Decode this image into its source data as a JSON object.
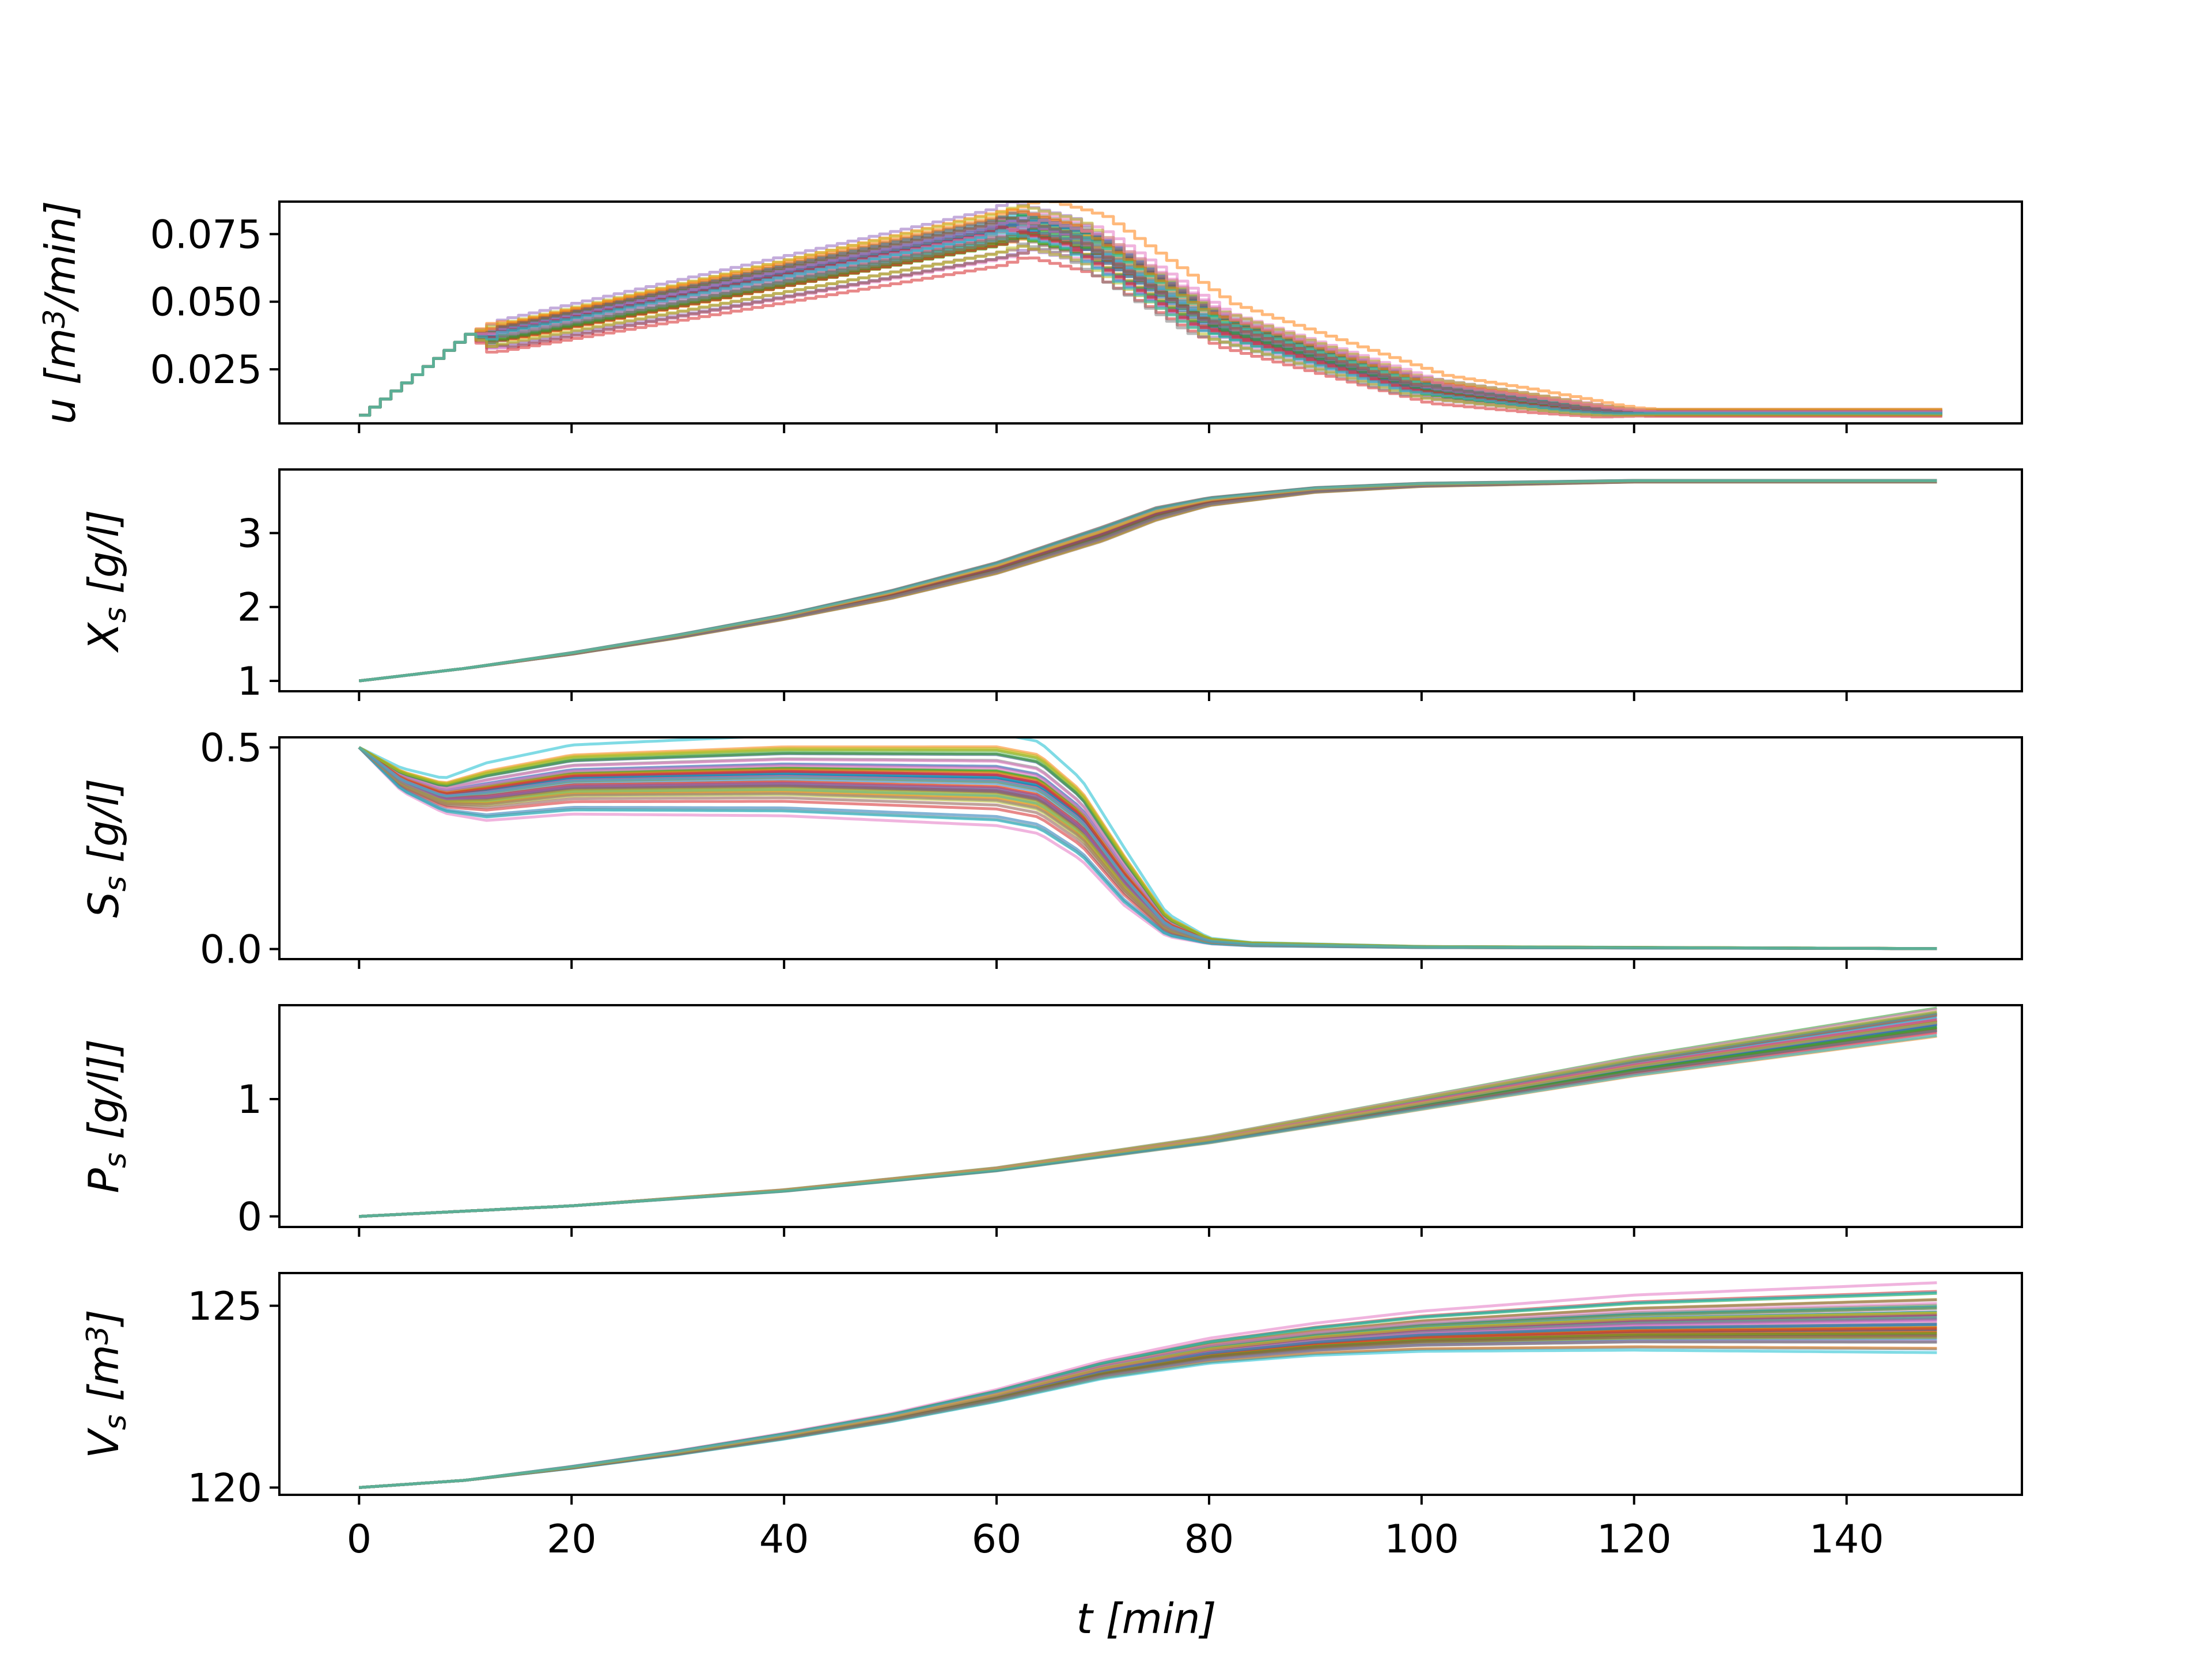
{
  "chart_data": {
    "type": "line",
    "layout": "5 stacked subplots, shared x axis",
    "xlabel": "t [min]",
    "xlim": [
      -7.5,
      156.5
    ],
    "x_ticks": [
      0,
      20,
      40,
      60,
      80,
      100,
      120,
      140
    ],
    "grid": false,
    "legend": "none",
    "ensemble_size": 60,
    "subplots": [
      {
        "id": "u",
        "ylabel": "u [m^3/min]",
        "ylim": [
          0.005,
          0.087
        ],
        "y_ticks": [
          0.025,
          0.05,
          0.075
        ],
        "y_tick_labels": [
          "0.025",
          "0.050",
          "0.075"
        ],
        "style": "steps",
        "x_nominal": [
          0,
          10,
          12,
          60,
          62,
          66,
          68,
          80,
          100,
          110,
          116,
          120,
          149
        ],
        "y_nominal": [
          0.008,
          0.038,
          0.037,
          0.075,
          0.078,
          0.074,
          0.072,
          0.042,
          0.018,
          0.013,
          0.01,
          0.009,
          0.009
        ],
        "y_spread": [
          0.0,
          0.0,
          0.004,
          0.008,
          0.008,
          0.008,
          0.008,
          0.006,
          0.004,
          0.003,
          0.002,
          0.001,
          0.001
        ]
      },
      {
        "id": "X",
        "ylabel": "X_s [g/l]",
        "ylim": [
          0.86,
          3.86
        ],
        "y_ticks": [
          1,
          2,
          3
        ],
        "y_tick_labels": [
          "1",
          "2",
          "3"
        ],
        "style": "line",
        "x_nominal": [
          0,
          10,
          20,
          30,
          40,
          50,
          60,
          70,
          75,
          80,
          90,
          100,
          120,
          149
        ],
        "y_nominal": [
          1.0,
          1.17,
          1.37,
          1.6,
          1.86,
          2.16,
          2.52,
          2.98,
          3.25,
          3.42,
          3.58,
          3.65,
          3.7,
          3.7
        ],
        "y_spread": [
          0.0,
          0.0,
          0.01,
          0.02,
          0.03,
          0.05,
          0.07,
          0.09,
          0.08,
          0.05,
          0.03,
          0.02,
          0.01,
          0.01
        ]
      },
      {
        "id": "S",
        "ylabel": "S_s [g/l]",
        "ylim": [
          -0.025,
          0.525
        ],
        "y_ticks": [
          0.0,
          0.5
        ],
        "y_tick_labels": [
          "0.0",
          "0.5"
        ],
        "style": "line",
        "x_nominal": [
          0,
          4,
          8,
          12,
          20,
          40,
          60,
          64,
          68,
          72,
          76,
          80,
          84,
          100,
          149
        ],
        "y_nominal": [
          0.5,
          0.42,
          0.38,
          0.39,
          0.42,
          0.43,
          0.42,
          0.4,
          0.32,
          0.18,
          0.06,
          0.02,
          0.012,
          0.005,
          0.001
        ],
        "y_spread": [
          0.0,
          0.02,
          0.03,
          0.05,
          0.06,
          0.07,
          0.08,
          0.08,
          0.07,
          0.05,
          0.02,
          0.005,
          0.003,
          0.001,
          0.0
        ]
      },
      {
        "id": "P",
        "ylabel": "P_s [g/l]]",
        "ylim": [
          -0.09,
          1.8
        ],
        "y_ticks": [
          0,
          1
        ],
        "y_tick_labels": [
          "0",
          "1"
        ],
        "style": "line",
        "x_nominal": [
          0,
          20,
          40,
          60,
          80,
          100,
          120,
          149
        ],
        "y_nominal": [
          0.0,
          0.09,
          0.22,
          0.4,
          0.65,
          0.96,
          1.27,
          1.65
        ],
        "y_spread": [
          0.0,
          0.0,
          0.005,
          0.01,
          0.02,
          0.04,
          0.06,
          0.09
        ]
      },
      {
        "id": "V",
        "ylabel": "V_s [m^3]",
        "ylim": [
          119.8,
          125.9
        ],
        "y_ticks": [
          120,
          125
        ],
        "y_tick_labels": [
          "120",
          "125"
        ],
        "style": "line",
        "x_nominal": [
          0,
          10,
          20,
          30,
          40,
          50,
          60,
          70,
          80,
          90,
          100,
          120,
          149
        ],
        "y_nominal": [
          120.0,
          120.2,
          120.55,
          120.95,
          121.4,
          121.9,
          122.5,
          123.2,
          123.7,
          124.0,
          124.2,
          124.4,
          124.5
        ],
        "y_spread": [
          0.0,
          0.0,
          0.02,
          0.04,
          0.06,
          0.08,
          0.12,
          0.18,
          0.25,
          0.32,
          0.4,
          0.55,
          0.7
        ]
      }
    ],
    "series_palette": [
      "#1f77b4",
      "#ff7f0e",
      "#2ca02c",
      "#d62728",
      "#9467bd",
      "#8c564b",
      "#e377c2",
      "#7f7f7f",
      "#bcbd22",
      "#17becf"
    ]
  }
}
